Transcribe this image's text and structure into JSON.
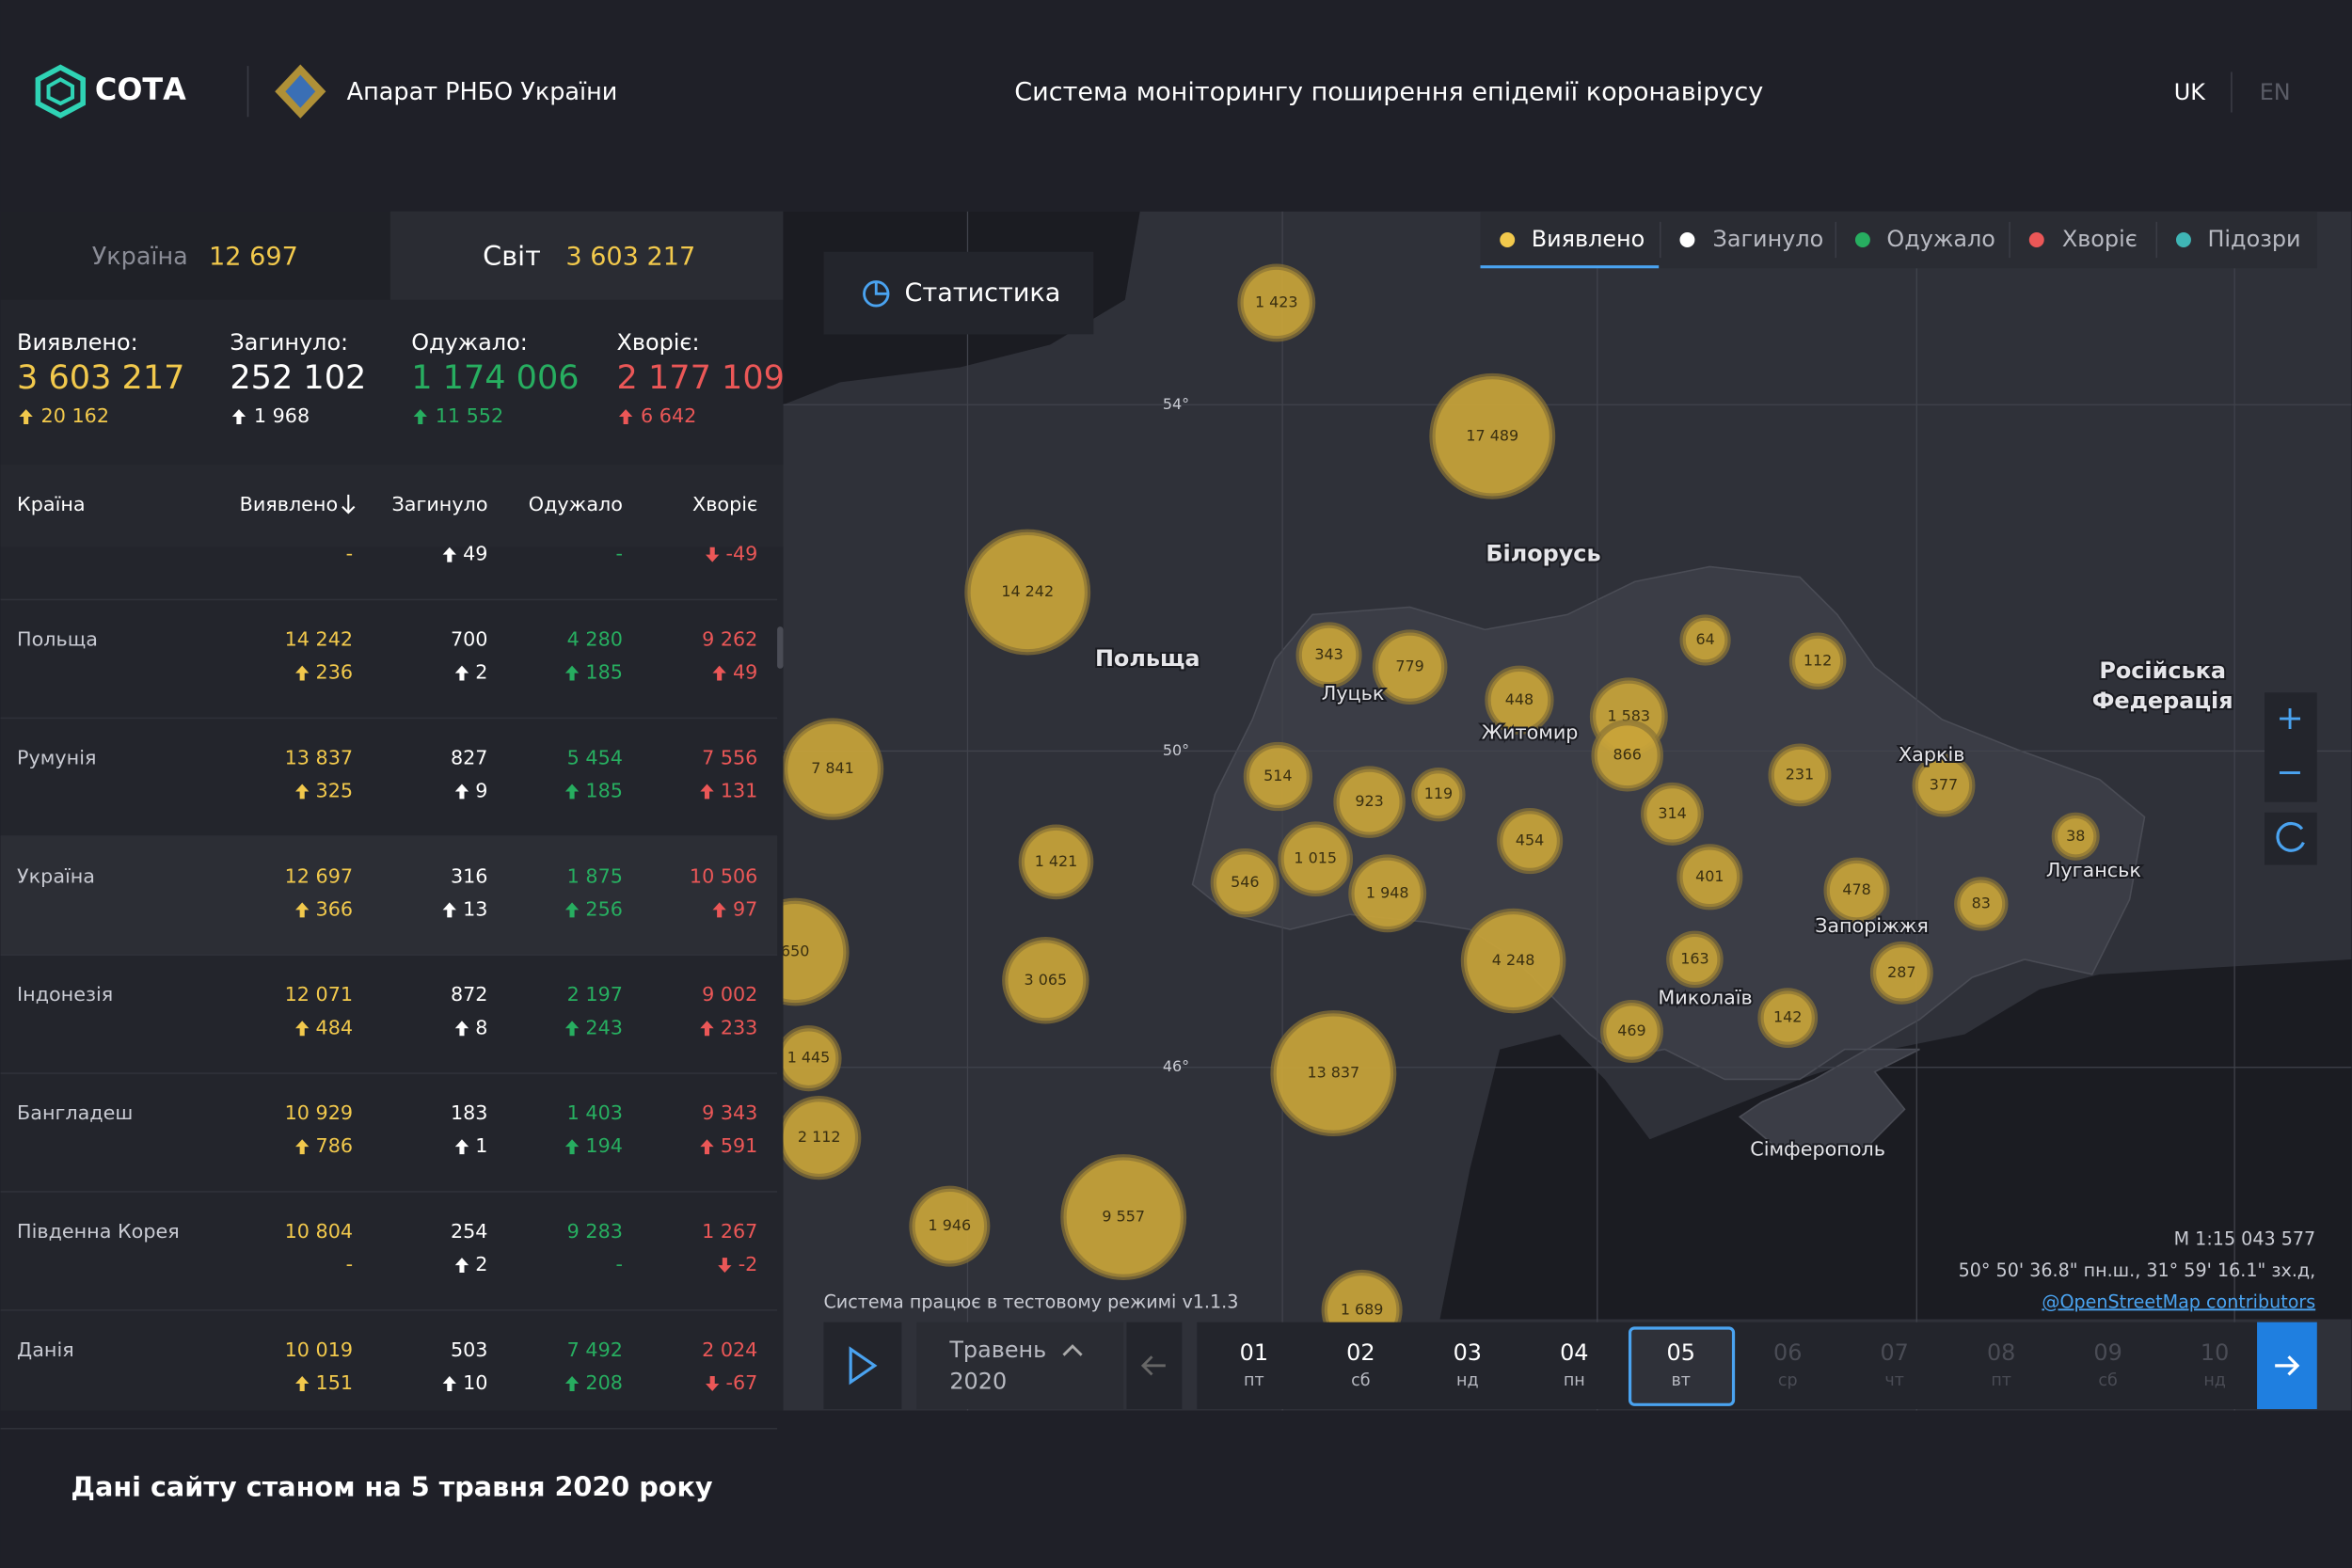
{
  "header": {
    "logo": "СОТА",
    "org": "Апарат РНБО України",
    "title": "Система моніторингу поширення епідемії коронавірусу",
    "languages": [
      "UK",
      "EN"
    ]
  },
  "tabs": [
    {
      "label": "Україна",
      "value": "12 697"
    },
    {
      "label": "Світ",
      "value": "3 603 217"
    }
  ],
  "summary": [
    {
      "label": "Виявлено:",
      "value": "3 603 217",
      "change": "20 162"
    },
    {
      "label": "Загинуло:",
      "value": "252 102",
      "change": "1 968"
    },
    {
      "label": "Одужало:",
      "value": "1 174 006",
      "change": "11 552"
    },
    {
      "label": "Хворіє:",
      "value": "2 177 109",
      "change": "6 642"
    }
  ],
  "table": {
    "columns": [
      "Країна",
      "Виявлено",
      "Загинуло",
      "Одужало",
      "Хворіє"
    ],
    "partial_row": [
      "-",
      "49",
      "-",
      "-49"
    ],
    "selected_row": 2,
    "rows": [
      {
        "country": "Польща",
        "cells": [
          [
            "14 242",
            "236"
          ],
          [
            "700",
            "2"
          ],
          [
            "4 280",
            "185"
          ],
          [
            "9 262",
            "49"
          ]
        ]
      },
      {
        "country": "Румунія",
        "cells": [
          [
            "13 837",
            "325"
          ],
          [
            "827",
            "9"
          ],
          [
            "5 454",
            "185"
          ],
          [
            "7 556",
            "131"
          ]
        ]
      },
      {
        "country": "Україна",
        "cells": [
          [
            "12 697",
            "366"
          ],
          [
            "316",
            "13"
          ],
          [
            "1 875",
            "256"
          ],
          [
            "10 506",
            "97"
          ]
        ]
      },
      {
        "country": "Індонезія",
        "cells": [
          [
            "12 071",
            "484"
          ],
          [
            "872",
            "8"
          ],
          [
            "2 197",
            "243"
          ],
          [
            "9 002",
            "233"
          ]
        ]
      },
      {
        "country": "Бангладеш",
        "cells": [
          [
            "10 929",
            "786"
          ],
          [
            "183",
            "1"
          ],
          [
            "1 403",
            "194"
          ],
          [
            "9 343",
            "591"
          ]
        ]
      },
      {
        "country": "Південна Корея",
        "cells": [
          [
            "10 804",
            "-"
          ],
          [
            "254",
            "2"
          ],
          [
            "9 283",
            "-"
          ],
          [
            "1 267",
            "-2"
          ]
        ]
      },
      {
        "country": "Данія",
        "cells": [
          [
            "10 019",
            "151"
          ],
          [
            "503",
            "10"
          ],
          [
            "7 492",
            "208"
          ],
          [
            "2 024",
            "-67"
          ]
        ]
      }
    ]
  },
  "map": {
    "button": "Статистика",
    "legend": [
      "Виявлено",
      "Загинуло",
      "Одужало",
      "Хворіє",
      "Підозри"
    ],
    "legend_active": 0,
    "bubbles": [
      "1 423",
      "17 489",
      "14 242",
      "7 841",
      "343",
      "779",
      "448",
      "64",
      "112",
      "1 583",
      "866",
      "514",
      "923",
      "119",
      "231",
      "377",
      "1 421",
      "1 015",
      "546",
      "1 948",
      "454",
      "314",
      "38",
      "401",
      "478",
      "83",
      "3 065",
      "4 248",
      "163",
      "287",
      "650",
      "469",
      "142",
      "1 445",
      "13 837",
      "2 112",
      "1 946",
      "9 557",
      "1 689"
    ],
    "places": [
      "Польща",
      "Білорусь",
      "Російська",
      "Федерація",
      "Луцьк",
      "Житомир",
      "Харків",
      "Луганськ",
      "Запоріжжя",
      "Миколаїв",
      "Сімферополь"
    ],
    "latitudes": [
      "54°",
      "50°",
      "46°"
    ],
    "scale": "М 1:15 043 577",
    "coordinates": "50° 50' 36.8\" пн.ш., 31° 59' 16.1\" зх.д,",
    "attribution": "@OpenStreetMap contributors",
    "version_note": "Система працює в тестовому режимі v1.1.3"
  },
  "timeline": {
    "month": "Травень",
    "year": "2020",
    "selected_day": 4,
    "days": [
      [
        "01",
        "пт"
      ],
      [
        "02",
        "сб"
      ],
      [
        "03",
        "нд"
      ],
      [
        "04",
        "пн"
      ],
      [
        "05",
        "вт"
      ],
      [
        "06",
        "ср"
      ],
      [
        "07",
        "чт"
      ],
      [
        "08",
        "пт"
      ],
      [
        "09",
        "сб"
      ],
      [
        "10",
        "нд"
      ]
    ]
  },
  "footer": "Дані сайту станом на 5 травня 2020 року"
}
